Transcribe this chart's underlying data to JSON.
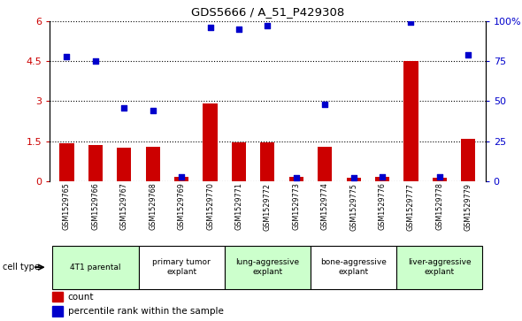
{
  "title": "GDS5666 / A_51_P429308",
  "samples": [
    "GSM1529765",
    "GSM1529766",
    "GSM1529767",
    "GSM1529768",
    "GSM1529769",
    "GSM1529770",
    "GSM1529771",
    "GSM1529772",
    "GSM1529773",
    "GSM1529774",
    "GSM1529775",
    "GSM1529776",
    "GSM1529777",
    "GSM1529778",
    "GSM1529779"
  ],
  "count": [
    1.42,
    1.37,
    1.27,
    1.28,
    0.18,
    2.9,
    1.47,
    1.47,
    0.17,
    1.3,
    0.12,
    0.18,
    4.5,
    0.12,
    1.6
  ],
  "percentile_pct": [
    78,
    75,
    46,
    44,
    3,
    96,
    95,
    97,
    2,
    48,
    2,
    3,
    99,
    3,
    79
  ],
  "count_color": "#cc0000",
  "percentile_color": "#0000cc",
  "ylim_left": [
    0,
    6
  ],
  "ylim_right": [
    0,
    100
  ],
  "yticks_left": [
    0,
    1.5,
    3.0,
    4.5,
    6
  ],
  "ytick_labels_left": [
    "0",
    "1.5",
    "3",
    "4.5",
    "6"
  ],
  "yticks_right": [
    0,
    25,
    50,
    75,
    100
  ],
  "ytick_labels_right": [
    "0",
    "25",
    "50",
    "75",
    "100%"
  ],
  "group_defs": [
    {
      "start": 0,
      "end": 2,
      "label": "4T1 parental",
      "color": "#ccffcc"
    },
    {
      "start": 3,
      "end": 5,
      "label": "primary tumor\nexplant",
      "color": "#ffffff"
    },
    {
      "start": 6,
      "end": 8,
      "label": "lung-aggressive\nexplant",
      "color": "#ccffcc"
    },
    {
      "start": 9,
      "end": 11,
      "label": "bone-aggressive\nexplant",
      "color": "#ffffff"
    },
    {
      "start": 12,
      "end": 14,
      "label": "liver-aggressive\nexplant",
      "color": "#ccffcc"
    }
  ],
  "cell_type_label": "cell type",
  "legend_count": "count",
  "legend_percentile": "percentile rank within the sample",
  "bg_color": "#ffffff",
  "tick_label_color_left": "#cc0000",
  "tick_label_color_right": "#0000cc",
  "sample_bg_color": "#cccccc",
  "bar_width": 0.5
}
